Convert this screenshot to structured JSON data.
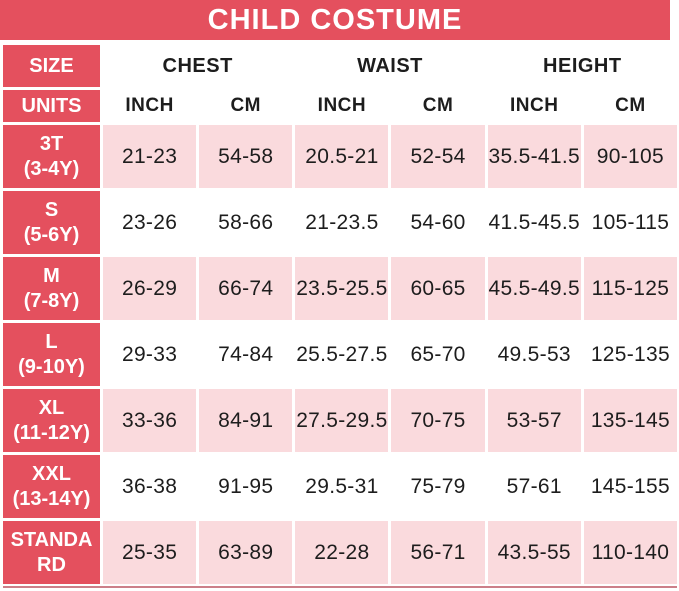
{
  "title": "CHILD COSTUME",
  "header": {
    "size": "SIZE",
    "units": "UNITS",
    "groups": [
      "CHEST",
      "WAIST",
      "HEIGHT"
    ],
    "units_row": [
      "INCH",
      "CM",
      "INCH",
      "CM",
      "INCH",
      "CM"
    ]
  },
  "size_labels": [
    [
      "3T",
      "(3-4Y)"
    ],
    [
      "S",
      "(5-6Y)"
    ],
    [
      "M",
      "(7-8Y)"
    ],
    [
      "L",
      "(9-10Y)"
    ],
    [
      "XL",
      "(11-12Y)"
    ],
    [
      "XXL",
      "(13-14Y)"
    ],
    [
      "STANDA",
      "RD"
    ]
  ],
  "colors": {
    "header_red": "#e4505e",
    "row_pink": "#fadadd",
    "text_dark": "#1d1d1d",
    "text_white": "#ffffff",
    "bottom_edge": "#cc7f89"
  },
  "chart_data": {
    "type": "table",
    "title": "CHILD COSTUME",
    "column_groups": [
      "CHEST",
      "WAIST",
      "HEIGHT"
    ],
    "columns": [
      "SIZE",
      "CHEST INCH",
      "CHEST CM",
      "WAIST INCH",
      "WAIST CM",
      "HEIGHT INCH",
      "HEIGHT CM"
    ],
    "rows": [
      [
        "3T (3-4Y)",
        "21-23",
        "54-58",
        "20.5-21",
        "52-54",
        "35.5-41.5",
        "90-105"
      ],
      [
        "S (5-6Y)",
        "23-26",
        "58-66",
        "21-23.5",
        "54-60",
        "41.5-45.5",
        "105-115"
      ],
      [
        "M (7-8Y)",
        "26-29",
        "66-74",
        "23.5-25.5",
        "60-65",
        "45.5-49.5",
        "115-125"
      ],
      [
        "L (9-10Y)",
        "29-33",
        "74-84",
        "25.5-27.5",
        "65-70",
        "49.5-53",
        "125-135"
      ],
      [
        "XL (11-12Y)",
        "33-36",
        "84-91",
        "27.5-29.5",
        "70-75",
        "53-57",
        "135-145"
      ],
      [
        "XXL (13-14Y)",
        "36-38",
        "91-95",
        "29.5-31",
        "75-79",
        "57-61",
        "145-155"
      ],
      [
        "STANDARD",
        "25-35",
        "63-89",
        "22-28",
        "56-71",
        "43.5-55",
        "110-140"
      ]
    ]
  }
}
